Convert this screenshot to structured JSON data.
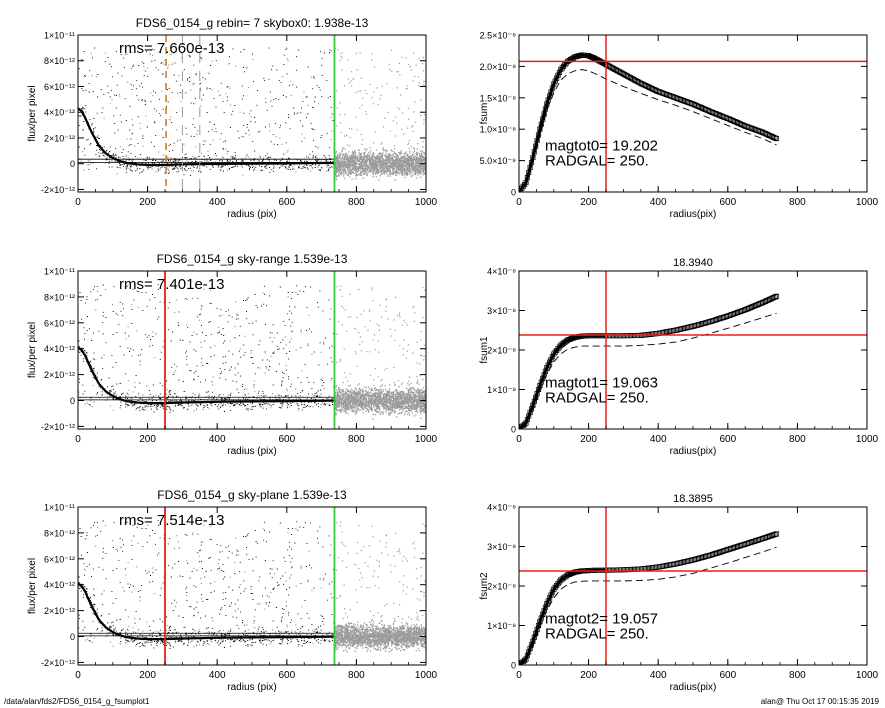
{
  "footer": {
    "left": "/data/alan/fds2/FDS6_0154_g_fsumplot1",
    "right": "alan@  Thu Oct 17 00:15:35 2019"
  },
  "colors": {
    "axis": "#000000",
    "scatter": "#9b9b9b",
    "scatter_inner": "#000000",
    "red": "#e8201a",
    "green": "#34c83a",
    "orange": "#e8862a",
    "gray_dash": "#9a9a9a"
  },
  "chart_data": [
    {
      "type": "scatter",
      "panel": "profile-1",
      "title": "FDS6_0154_g rebin= 7    skybox0:  1.938e-13",
      "annotation": "rms= 7.660e-13",
      "xlabel": "radius (pix)",
      "ylabel": "flux/per pixel",
      "xlim": [
        0,
        1000
      ],
      "ylim": [
        -2.2e-12,
        1e-11
      ],
      "xticks": [
        0,
        200,
        400,
        600,
        800,
        1000
      ],
      "xtick_labels": [
        "0",
        "200",
        "400",
        "600",
        "800",
        "1000"
      ],
      "yticks": [
        -2e-12,
        0,
        2e-12,
        4e-12,
        6e-12,
        8e-12,
        1e-11
      ],
      "ytick_labels": [
        "-2×10⁻¹²",
        "0",
        "2×10⁻¹²",
        "4×10⁻¹²",
        "6×10⁻¹²",
        "8×10⁻¹²",
        "1×10⁻¹¹"
      ],
      "profile": {
        "x": [
          0,
          10,
          20,
          30,
          40,
          50,
          60,
          80,
          100,
          120,
          140,
          170,
          200,
          250,
          300,
          400,
          500,
          600,
          700,
          740
        ],
        "y": [
          4.3e-12,
          4.1e-12,
          3.6e-12,
          3e-12,
          2.4e-12,
          1.9e-12,
          1.4e-12,
          8e-13,
          4.5e-13,
          2e-13,
          5e-14,
          -5e-14,
          -1e-13,
          -1e-13,
          -5e-14,
          -2e-14,
          0.0,
          2e-14,
          5e-14,
          5e-14
        ]
      },
      "hlines": [
        1e-13,
        3.5e-13
      ],
      "vlines": [
        {
          "x": 253,
          "color": "orange",
          "style": "dashed"
        },
        {
          "x": 300,
          "color": "gray_dash",
          "style": "dashed"
        },
        {
          "x": 350,
          "color": "gray_dash",
          "style": "dashed"
        },
        {
          "x": 737,
          "color": "green",
          "style": "solid"
        }
      ]
    },
    {
      "type": "line",
      "panel": "fsum-0",
      "title": "",
      "labels": [
        "magtot0=  19.202",
        "RADGAL=    250."
      ],
      "xlabel": "radius(pix)",
      "ylabel": "fsum",
      "xlim": [
        0,
        1000
      ],
      "ylim": [
        0,
        2.5e-08
      ],
      "xticks": [
        0,
        200,
        400,
        600,
        800,
        1000
      ],
      "xtick_labels": [
        "0",
        "200",
        "400",
        "600",
        "800",
        "1000"
      ],
      "yticks": [
        0,
        5e-09,
        1e-08,
        1.5e-08,
        2e-08,
        2.5e-08
      ],
      "ytick_labels": [
        "0",
        "5.0×10⁻⁹",
        "1.0×10⁻⁸",
        "1.5×10⁻⁸",
        "2.0×10⁻⁸",
        "2.5×10⁻⁸"
      ],
      "series": [
        {
          "style": "squares",
          "x": [
            0,
            20,
            40,
            60,
            80,
            100,
            120,
            140,
            160,
            180,
            200,
            220,
            250,
            300,
            350,
            400,
            450,
            500,
            550,
            600,
            650,
            700,
            740
          ],
          "y": [
            0,
            1.5e-09,
            5.5e-09,
            1e-08,
            1.4e-08,
            1.72e-08,
            1.95e-08,
            2.08e-08,
            2.15e-08,
            2.18e-08,
            2.17e-08,
            2.12e-08,
            2.03e-08,
            1.88e-08,
            1.73e-08,
            1.6e-08,
            1.5e-08,
            1.4e-08,
            1.28e-08,
            1.17e-08,
            1.05e-08,
            9.5e-09,
            8.5e-09
          ]
        },
        {
          "style": "dashed",
          "x": [
            0,
            20,
            40,
            60,
            80,
            100,
            120,
            140,
            160,
            180,
            200,
            220,
            250,
            300,
            350,
            400,
            450,
            500,
            550,
            600,
            650,
            700,
            740
          ],
          "y": [
            0,
            1.3e-09,
            5e-09,
            9e-09,
            1.3e-08,
            1.58e-08,
            1.78e-08,
            1.88e-08,
            1.93e-08,
            1.95e-08,
            1.93e-08,
            1.88e-08,
            1.8e-08,
            1.68e-08,
            1.57e-08,
            1.47e-08,
            1.38e-08,
            1.28e-08,
            1.17e-08,
            1.06e-08,
            9.5e-09,
            8.5e-09,
            7.5e-09
          ]
        }
      ],
      "hline": 2.08e-08,
      "vline": 250
    },
    {
      "type": "scatter",
      "panel": "profile-2",
      "title": "FDS6_0154_g sky-range  1.539e-13",
      "annotation": "rms= 7.401e-13",
      "xlabel": "radius (pix)",
      "ylabel": "flux/per pixel",
      "xlim": [
        0,
        1000
      ],
      "ylim": [
        -2.2e-12,
        1e-11
      ],
      "xticks": [
        0,
        200,
        400,
        600,
        800,
        1000
      ],
      "xtick_labels": [
        "0",
        "200",
        "400",
        "600",
        "800",
        "1000"
      ],
      "yticks": [
        -2e-12,
        0,
        2e-12,
        4e-12,
        6e-12,
        8e-12,
        1e-11
      ],
      "ytick_labels": [
        "-2×10⁻¹²",
        "0",
        "2×10⁻¹²",
        "4×10⁻¹²",
        "6×10⁻¹²",
        "8×10⁻¹²",
        "1×10⁻¹¹"
      ],
      "profile": {
        "x": [
          0,
          10,
          20,
          30,
          40,
          50,
          60,
          80,
          100,
          120,
          140,
          170,
          200,
          250,
          300,
          400,
          500,
          600,
          700,
          740
        ],
        "y": [
          4.1e-12,
          3.9e-12,
          3.5e-12,
          2.9e-12,
          2.3e-12,
          1.8e-12,
          1.3e-12,
          7e-13,
          3.5e-13,
          1e-13,
          -5e-14,
          -1.5e-13,
          -2e-13,
          -2e-13,
          -1.5e-13,
          -1e-13,
          -7e-14,
          -5e-14,
          -2e-14,
          0.0
        ]
      },
      "hlines": [
        5e-14,
        2.5e-13
      ],
      "vlines": [
        {
          "x": 250,
          "color": "red",
          "style": "solid"
        },
        {
          "x": 737,
          "color": "green",
          "style": "solid"
        }
      ]
    },
    {
      "type": "line",
      "panel": "fsum-1",
      "title": "18.3940",
      "labels": [
        "magtot1=  19.063",
        "RADGAL=    250."
      ],
      "xlabel": "radius(pix)",
      "ylabel": "fsum1",
      "xlim": [
        0,
        1000
      ],
      "ylim": [
        0,
        4e-08
      ],
      "xticks": [
        0,
        200,
        400,
        600,
        800,
        1000
      ],
      "xtick_labels": [
        "0",
        "200",
        "400",
        "600",
        "800",
        "1000"
      ],
      "yticks": [
        0,
        1e-08,
        2e-08,
        3e-08,
        4e-08
      ],
      "ytick_labels": [
        "0",
        "1×10⁻⁸",
        "2×10⁻⁸",
        "3×10⁻⁸",
        "4×10⁻⁸"
      ],
      "series": [
        {
          "style": "squares",
          "x": [
            0,
            20,
            40,
            60,
            80,
            100,
            120,
            140,
            160,
            180,
            200,
            220,
            250,
            300,
            350,
            400,
            450,
            500,
            550,
            600,
            650,
            700,
            740
          ],
          "y": [
            0,
            1.5e-09,
            6e-09,
            1.1e-08,
            1.55e-08,
            1.9e-08,
            2.12e-08,
            2.25e-08,
            2.32e-08,
            2.35e-08,
            2.36e-08,
            2.36e-08,
            2.36e-08,
            2.36e-08,
            2.37e-08,
            2.42e-08,
            2.5e-08,
            2.6e-08,
            2.72e-08,
            2.86e-08,
            3.02e-08,
            3.2e-08,
            3.36e-08
          ]
        },
        {
          "style": "dashed",
          "x": [
            0,
            20,
            40,
            60,
            80,
            100,
            120,
            140,
            160,
            180,
            200,
            220,
            250,
            300,
            350,
            400,
            450,
            500,
            550,
            600,
            650,
            700,
            740
          ],
          "y": [
            0,
            1.3e-09,
            5e-09,
            9.5e-09,
            1.38e-08,
            1.7e-08,
            1.9e-08,
            2.02e-08,
            2.07e-08,
            2.1e-08,
            2.1e-08,
            2.1e-08,
            2.1e-08,
            2.1e-08,
            2.12e-08,
            2.15e-08,
            2.2e-08,
            2.3e-08,
            2.42e-08,
            2.55e-08,
            2.68e-08,
            2.82e-08,
            2.93e-08
          ]
        }
      ],
      "hline": 2.38e-08,
      "vline": 250
    },
    {
      "type": "scatter",
      "panel": "profile-3",
      "title": "FDS6_0154_g sky-plane  1.539e-13",
      "annotation": "rms= 7.514e-13",
      "xlabel": "radius (pix)",
      "ylabel": "flux/per pixel",
      "xlim": [
        0,
        1000
      ],
      "ylim": [
        -2.2e-12,
        1e-11
      ],
      "xticks": [
        0,
        200,
        400,
        600,
        800,
        1000
      ],
      "xtick_labels": [
        "0",
        "200",
        "400",
        "600",
        "800",
        "1000"
      ],
      "yticks": [
        -2e-12,
        0,
        2e-12,
        4e-12,
        6e-12,
        8e-12,
        1e-11
      ],
      "ytick_labels": [
        "-2×10⁻¹²",
        "0",
        "2×10⁻¹²",
        "4×10⁻¹²",
        "6×10⁻¹²",
        "8×10⁻¹²",
        "1×10⁻¹¹"
      ],
      "profile": {
        "x": [
          0,
          10,
          20,
          30,
          40,
          50,
          60,
          80,
          100,
          120,
          140,
          170,
          200,
          250,
          300,
          400,
          500,
          600,
          700,
          740
        ],
        "y": [
          4.1e-12,
          3.9e-12,
          3.5e-12,
          2.9e-12,
          2.3e-12,
          1.8e-12,
          1.3e-12,
          7e-13,
          3.5e-13,
          1e-13,
          -5e-14,
          -1.5e-13,
          -2e-13,
          -2e-13,
          -1.5e-13,
          -1e-13,
          -7e-14,
          -5e-14,
          -2e-14,
          0.0
        ]
      },
      "hlines": [
        5e-14,
        2.5e-13
      ],
      "vlines": [
        {
          "x": 250,
          "color": "red",
          "style": "solid"
        },
        {
          "x": 737,
          "color": "green",
          "style": "solid"
        }
      ]
    },
    {
      "type": "line",
      "panel": "fsum-2",
      "title": "18.3895",
      "labels": [
        "magtot2=  19.057",
        "RADGAL=    250."
      ],
      "xlabel": "radius(pix)",
      "ylabel": "fsum2",
      "xlim": [
        0,
        1000
      ],
      "ylim": [
        0,
        4e-08
      ],
      "xticks": [
        0,
        200,
        400,
        600,
        800,
        1000
      ],
      "xtick_labels": [
        "0",
        "200",
        "400",
        "600",
        "800",
        "1000"
      ],
      "yticks": [
        0,
        1e-08,
        2e-08,
        3e-08,
        4e-08
      ],
      "ytick_labels": [
        "0",
        "1×10⁻⁸",
        "2×10⁻⁸",
        "3×10⁻⁸",
        "4×10⁻⁸"
      ],
      "series": [
        {
          "style": "squares",
          "x": [
            0,
            20,
            40,
            60,
            80,
            100,
            120,
            140,
            160,
            180,
            200,
            220,
            250,
            300,
            350,
            400,
            450,
            500,
            550,
            600,
            650,
            700,
            740
          ],
          "y": [
            0,
            1.5e-09,
            6e-09,
            1.1e-08,
            1.55e-08,
            1.92e-08,
            2.15e-08,
            2.28e-08,
            2.35e-08,
            2.38e-08,
            2.39e-08,
            2.4e-08,
            2.4e-08,
            2.41e-08,
            2.43e-08,
            2.48e-08,
            2.56e-08,
            2.66e-08,
            2.78e-08,
            2.92e-08,
            3.06e-08,
            3.2e-08,
            3.32e-08
          ]
        },
        {
          "style": "dashed",
          "x": [
            0,
            20,
            40,
            60,
            80,
            100,
            120,
            140,
            160,
            180,
            200,
            220,
            250,
            300,
            350,
            400,
            450,
            500,
            550,
            600,
            650,
            700,
            740
          ],
          "y": [
            0,
            1.3e-09,
            5e-09,
            9.5e-09,
            1.38e-08,
            1.7e-08,
            1.92e-08,
            2.04e-08,
            2.1e-08,
            2.12e-08,
            2.13e-08,
            2.13e-08,
            2.13e-08,
            2.13e-08,
            2.14e-08,
            2.17e-08,
            2.23e-08,
            2.32e-08,
            2.45e-08,
            2.58e-08,
            2.72e-08,
            2.86e-08,
            2.98e-08
          ]
        }
      ],
      "hline": 2.38e-08,
      "vline": 250
    }
  ]
}
